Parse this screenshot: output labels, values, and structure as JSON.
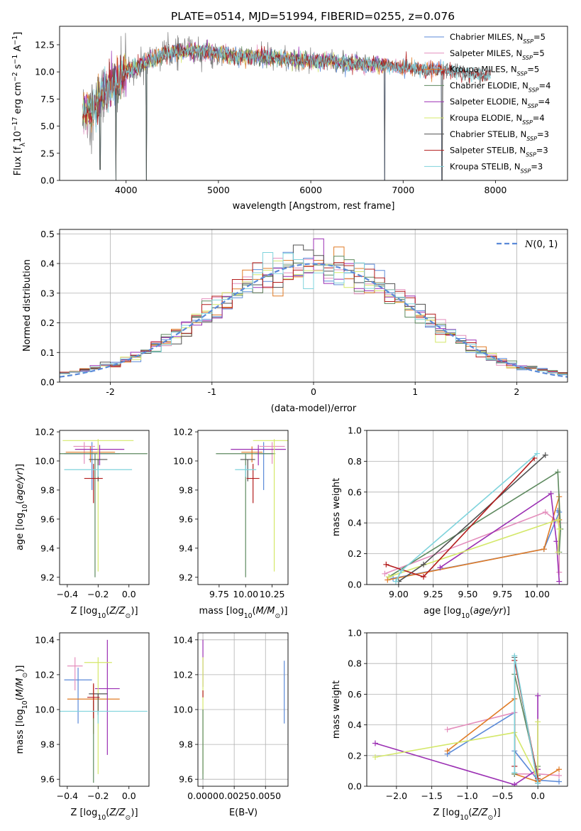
{
  "figure_title": "PLATE=0514, MJD=51994, FIBERID=0255, z=0.076",
  "colors": {
    "Chabrier MILES": "#5b8ad8",
    "Salpeter MILES": "#e48fbd",
    "Kroupa MILES": "#e07b26",
    "Chabrier ELODIE": "#5e8a5f",
    "Salpeter ELODIE": "#9b2fb3",
    "Kroupa ELODIE": "#d4e86a",
    "Chabrier STELIB": "#505050",
    "Salpeter STELIB": "#b31c1c",
    "Kroupa STELIB": "#7fd3dc",
    "data": "#7a7a7a",
    "normal": "#5b8ad8"
  },
  "chart_data": [
    {
      "id": "spectrum",
      "type": "line",
      "title": "PLATE=0514, MJD=51994, FIBERID=0255, z=0.076",
      "xlabel": "wavelength [Angstrom, rest frame]",
      "ylabel": "Flux [f_λ 10^-17 erg cm^-2 s^-1 A^-1]",
      "xlim": [
        3280,
        8780
      ],
      "ylim": [
        0,
        14.2
      ],
      "xticks": [
        4000,
        5000,
        6000,
        7000,
        8000
      ],
      "yticks": [
        0.0,
        2.5,
        5.0,
        7.5,
        10.0,
        12.5
      ],
      "grid": false,
      "legend_position": "top-right",
      "legend": [
        {
          "label": "Chabrier MILES, N",
          "sub": "SSP",
          "tail": "=5",
          "model": "Chabrier MILES"
        },
        {
          "label": "Salpeter MILES, N",
          "sub": "SSP",
          "tail": "=5",
          "model": "Salpeter MILES"
        },
        {
          "label": "Kroupa MILES, N",
          "sub": "SSP",
          "tail": "=5",
          "model": "Kroupa MILES"
        },
        {
          "label": "Chabrier ELODIE, N",
          "sub": "SSP",
          "tail": "=4",
          "model": "Chabrier ELODIE"
        },
        {
          "label": "Salpeter ELODIE, N",
          "sub": "SSP",
          "tail": "=4",
          "model": "Salpeter ELODIE"
        },
        {
          "label": "Kroupa ELODIE, N",
          "sub": "SSP",
          "tail": "=4",
          "model": "Kroupa ELODIE"
        },
        {
          "label": "Chabrier STELIB, N",
          "sub": "SSP",
          "tail": "=3",
          "model": "Chabrier STELIB"
        },
        {
          "label": "Salpeter STELIB, N",
          "sub": "SSP",
          "tail": "=3",
          "model": "Salpeter STELIB"
        },
        {
          "label": "Kroupa STELIB, N",
          "sub": "SSP",
          "tail": "=3",
          "model": "Kroupa STELIB"
        }
      ],
      "continuum": [
        [
          3530,
          6.2
        ],
        [
          3650,
          6.6
        ],
        [
          3750,
          8.0
        ],
        [
          3850,
          8.8
        ],
        [
          3950,
          9.2
        ],
        [
          4000,
          10.0
        ],
        [
          4200,
          10.8
        ],
        [
          4400,
          11.6
        ],
        [
          4600,
          11.9
        ],
        [
          4800,
          11.9
        ],
        [
          5000,
          11.7
        ],
        [
          5200,
          11.4
        ],
        [
          5400,
          11.5
        ],
        [
          5600,
          11.3
        ],
        [
          5800,
          11.1
        ],
        [
          6000,
          11.0
        ],
        [
          6200,
          11.0
        ],
        [
          6400,
          10.8
        ],
        [
          6600,
          10.7
        ],
        [
          6800,
          10.6
        ],
        [
          7000,
          10.4
        ],
        [
          7200,
          10.3
        ],
        [
          7400,
          10.2
        ],
        [
          7600,
          10.0
        ],
        [
          7800,
          9.8
        ],
        [
          7950,
          9.7
        ]
      ],
      "model_ranges": {
        "MILES": [
          3530,
          7420
        ],
        "ELODIE": [
          3530,
          6790
        ],
        "STELIB": [
          3530,
          7950
        ]
      },
      "absorption_dips": [
        [
          3720,
          1.0
        ],
        [
          3890,
          0.0
        ],
        [
          4220,
          0.0
        ],
        [
          6800,
          0.0
        ],
        [
          7420,
          0.0
        ]
      ]
    },
    {
      "id": "residual_histogram",
      "type": "histogram",
      "xlabel": "(data-model)/error",
      "ylabel": "Normed distribution",
      "xlim": [
        -2.5,
        2.5
      ],
      "ylim": [
        0,
        0.515
      ],
      "xticks": [
        -2,
        -1,
        0,
        1,
        2
      ],
      "yticks": [
        0.0,
        0.1,
        0.2,
        0.3,
        0.4,
        0.5
      ],
      "grid": true,
      "legend_position": "top-right",
      "legend": [
        {
          "label": "N(0,1)",
          "style": "dashed"
        }
      ],
      "bin_width": 0.1
    },
    {
      "id": "age_vs_Z",
      "type": "errorbar",
      "xlabel": "Z [log10(Z/Z☉)]",
      "ylabel": "age [log10(age/yr)]",
      "xlim": [
        -0.45,
        0.13
      ],
      "ylim": [
        9.15,
        10.21
      ],
      "xticks": [
        -0.4,
        -0.2,
        0.0
      ],
      "yticks": [
        9.2,
        9.4,
        9.6,
        9.8,
        10.0,
        10.2
      ],
      "grid": false,
      "points": [
        {
          "model": "Chabrier MILES",
          "x": -0.24,
          "xerr": 0.18,
          "y": 10.05,
          "yerr": [
            0.25,
            0.08
          ]
        },
        {
          "model": "Salpeter MILES",
          "x": -0.29,
          "xerr": 0.07,
          "y": 10.1,
          "yerr": [
            0.12,
            0.03
          ]
        },
        {
          "model": "Kroupa MILES",
          "x": -0.25,
          "xerr": 0.16,
          "y": 10.06,
          "yerr": [
            0.07,
            0.04
          ]
        },
        {
          "model": "Chabrier ELODIE",
          "x": -0.22,
          "xerr": 0.34,
          "y": 10.05,
          "yerr": [
            0.85,
            0.0
          ]
        },
        {
          "model": "Salpeter ELODIE",
          "x": -0.19,
          "xerr": 0.16,
          "y": 10.08,
          "yerr": [
            0.11,
            0.03
          ]
        },
        {
          "model": "Kroupa ELODIE",
          "x": -0.2,
          "xerr": 0.23,
          "y": 10.14,
          "yerr": [
            0.9,
            0.01
          ]
        },
        {
          "model": "Chabrier STELIB",
          "x": -0.2,
          "xerr": 0.06,
          "y": 10.01,
          "yerr": [
            0.15,
            0.0
          ]
        },
        {
          "model": "Salpeter STELIB",
          "x": -0.23,
          "xerr": 0.06,
          "y": 9.88,
          "yerr": [
            0.17,
            0.1
          ]
        },
        {
          "model": "Kroupa STELIB",
          "x": -0.2,
          "xerr": 0.22,
          "y": 9.94,
          "yerr": [
            0.05,
            0.03
          ]
        }
      ]
    },
    {
      "id": "age_vs_mass",
      "type": "errorbar",
      "xlabel": "mass [log10(M/M☉)]",
      "ylabel": "",
      "xlim": [
        9.55,
        10.4
      ],
      "ylim": [
        9.15,
        10.21
      ],
      "xticks": [
        9.75,
        10.0,
        10.25
      ],
      "yticks": [
        9.2,
        9.4,
        9.6,
        9.8,
        10.0,
        10.2
      ],
      "grid": false,
      "points": [
        {
          "model": "Chabrier MILES",
          "x": 10.17,
          "xerr": 0.08,
          "y": 10.05,
          "yerr": [
            0.25,
            0.08
          ]
        },
        {
          "model": "Salpeter MILES",
          "x": 10.25,
          "xerr": 0.12,
          "y": 10.1,
          "yerr": [
            0.12,
            0.03
          ]
        },
        {
          "model": "Kroupa MILES",
          "x": 10.06,
          "xerr": 0.1,
          "y": 10.06,
          "yerr": [
            0.07,
            0.04
          ]
        },
        {
          "model": "Chabrier ELODIE",
          "x": 10.0,
          "xerr": 0.28,
          "y": 10.05,
          "yerr": [
            0.85,
            0.0
          ]
        },
        {
          "model": "Salpeter ELODIE",
          "x": 10.12,
          "xerr": 0.26,
          "y": 10.08,
          "yerr": [
            0.11,
            0.03
          ]
        },
        {
          "model": "Kroupa ELODIE",
          "x": 10.27,
          "xerr": 0.2,
          "y": 10.14,
          "yerr": [
            0.9,
            0.01
          ]
        },
        {
          "model": "Chabrier STELIB",
          "x": 10.02,
          "xerr": 0.07,
          "y": 10.01,
          "yerr": [
            0.15,
            0.0
          ]
        },
        {
          "model": "Salpeter STELIB",
          "x": 10.07,
          "xerr": 0.06,
          "y": 9.88,
          "yerr": [
            0.17,
            0.1
          ]
        },
        {
          "model": "Kroupa STELIB",
          "x": 10.0,
          "xerr": 0.1,
          "y": 9.94,
          "yerr": [
            0.05,
            0.03
          ]
        }
      ]
    },
    {
      "id": "mass_weight_vs_age",
      "type": "line",
      "xlabel": "age [log10(age/yr)]",
      "ylabel": "mass weight",
      "xlim": [
        8.77,
        10.22
      ],
      "ylim": [
        0,
        1
      ],
      "xticks": [
        9.0,
        9.25,
        9.5,
        9.75,
        10.0
      ],
      "yticks": [
        0.0,
        0.2,
        0.4,
        0.6,
        0.8,
        1.0
      ],
      "grid": true,
      "series": [
        {
          "model": "Chabrier MILES",
          "x": [
            8.96,
            10.05,
            10.16,
            10.15
          ],
          "y": [
            0.04,
            0.23,
            0.47,
            0.48
          ]
        },
        {
          "model": "Salpeter MILES",
          "x": [
            8.9,
            10.06,
            10.16,
            10.16
          ],
          "y": [
            0.07,
            0.47,
            0.4,
            0.08
          ]
        },
        {
          "model": "Kroupa MILES",
          "x": [
            8.92,
            10.05,
            10.16,
            10.16
          ],
          "y": [
            0.03,
            0.23,
            0.57,
            0.42
          ]
        },
        {
          "model": "Chabrier ELODIE",
          "x": [
            8.93,
            10.15,
            10.17,
            10.16
          ],
          "y": [
            0.05,
            0.73,
            0.36,
            0.21
          ]
        },
        {
          "model": "Salpeter ELODIE",
          "x": [
            9.3,
            10.1,
            10.14,
            10.16
          ],
          "y": [
            0.11,
            0.59,
            0.28,
            0.02
          ]
        },
        {
          "model": "Kroupa ELODIE",
          "x": [
            8.93,
            10.15,
            10.16,
            10.15
          ],
          "y": [
            0.05,
            0.42,
            0.36,
            0.21
          ]
        },
        {
          "model": "Chabrier STELIB",
          "x": [
            9.0,
            9.18,
            10.06
          ],
          "y": [
            0.02,
            0.13,
            0.84
          ]
        },
        {
          "model": "Salpeter STELIB",
          "x": [
            8.91,
            9.18,
            9.98
          ],
          "y": [
            0.13,
            0.05,
            0.82
          ]
        },
        {
          "model": "Kroupa STELIB",
          "x": [
            8.98,
            9.02,
            10.0
          ],
          "y": [
            0.02,
            0.09,
            0.85
          ]
        }
      ]
    },
    {
      "id": "mass_vs_Z",
      "type": "errorbar",
      "xlabel": "Z [log10(Z/Z☉)]",
      "ylabel": "mass [log10(M/M☉)]",
      "xlim": [
        -0.45,
        0.13
      ],
      "ylim": [
        9.56,
        10.44
      ],
      "xticks": [
        -0.4,
        -0.2,
        0.0
      ],
      "yticks": [
        9.6,
        9.8,
        10.0,
        10.2,
        10.4
      ],
      "grid": false,
      "points": [
        {
          "model": "Chabrier MILES",
          "x": -0.33,
          "xerr": 0.09,
          "y": 10.17,
          "yerr": [
            0.25,
            0.07
          ]
        },
        {
          "model": "Salpeter MILES",
          "x": -0.35,
          "xerr": 0.05,
          "y": 10.25,
          "yerr": [
            0.14,
            0.05
          ]
        },
        {
          "model": "Kroupa MILES",
          "x": -0.23,
          "xerr": 0.17,
          "y": 10.06,
          "yerr": [
            0.2,
            0.08
          ]
        },
        {
          "model": "Chabrier ELODIE",
          "x": -0.23,
          "xerr": 0.0,
          "y": 10.0,
          "yerr": [
            0.42,
            0.05
          ]
        },
        {
          "model": "Salpeter ELODIE",
          "x": -0.14,
          "xerr": 0.08,
          "y": 10.12,
          "yerr": [
            0.38,
            0.28
          ]
        },
        {
          "model": "Kroupa ELODIE",
          "x": -0.2,
          "xerr": 0.09,
          "y": 10.27,
          "yerr": [
            0.64,
            0.03
          ]
        },
        {
          "model": "Chabrier STELIB",
          "x": -0.2,
          "xerr": 0.06,
          "y": 10.09,
          "yerr": [
            0.12,
            0.0
          ]
        },
        {
          "model": "Salpeter STELIB",
          "x": -0.23,
          "xerr": 0.04,
          "y": 10.07,
          "yerr": [
            0.12,
            0.08
          ]
        },
        {
          "model": "Kroupa STELIB",
          "x": -0.2,
          "xerr": 0.32,
          "y": 9.99,
          "yerr": [
            0.07,
            0.0
          ]
        }
      ]
    },
    {
      "id": "mass_vs_EBV",
      "type": "errorbar",
      "xlabel": "E(B-V)",
      "ylabel": "",
      "xlim": [
        -0.0004,
        0.0068
      ],
      "ylim": [
        9.56,
        10.44
      ],
      "xticks": [
        0.0,
        0.0025,
        0.005
      ],
      "xtick_labels": [
        "0.0000",
        "0.0025",
        "0.0050"
      ],
      "yticks": [
        9.6,
        9.8,
        10.0,
        10.2,
        10.4
      ],
      "grid": true,
      "points": [
        {
          "model": "Chabrier MILES",
          "x": 0.0065,
          "y": 10.1,
          "yerr": [
            0.18,
            0.18
          ]
        },
        {
          "model": "Salpeter ELODIE",
          "x": 0.0,
          "y": 10.25,
          "yerr": [
            0.12,
            0.15
          ]
        },
        {
          "model": "Kroupa ELODIE",
          "x": 0.0,
          "y": 10.27,
          "yerr": [
            0.64,
            0.03
          ]
        },
        {
          "model": "Salpeter STELIB",
          "x": 0.0,
          "y": 10.11,
          "yerr": [
            0.04,
            0.0
          ]
        },
        {
          "model": "Chabrier ELODIE",
          "x": 0.0,
          "y": 9.85,
          "yerr": [
            0.25,
            0.15
          ]
        }
      ]
    },
    {
      "id": "mass_weight_vs_Z",
      "type": "line",
      "xlabel": "Z [log10(Z/Z☉)]",
      "ylabel": "mass weight",
      "xlim": [
        -2.42,
        0.42
      ],
      "ylim": [
        0,
        1
      ],
      "xticks": [
        -2.0,
        -1.5,
        -1.0,
        -0.5,
        0.0
      ],
      "yticks": [
        0.0,
        0.2,
        0.4,
        0.6,
        0.8,
        1.0
      ],
      "grid": true,
      "series": [
        {
          "model": "Chabrier MILES",
          "x": [
            -1.28,
            -0.33,
            -0.33,
            0.0,
            0.3
          ],
          "y": [
            0.21,
            0.48,
            0.23,
            0.04,
            0.03
          ]
        },
        {
          "model": "Salpeter MILES",
          "x": [
            -1.28,
            -0.33,
            -0.33,
            0.0,
            0.3
          ],
          "y": [
            0.37,
            0.48,
            0.08,
            0.08,
            0.07
          ]
        },
        {
          "model": "Kroupa MILES",
          "x": [
            -1.28,
            -0.33,
            -0.33,
            0.0,
            0.3
          ],
          "y": [
            0.23,
            0.57,
            0.08,
            0.03,
            0.11
          ]
        },
        {
          "model": "Chabrier ELODIE",
          "x": [
            -0.33,
            -0.33,
            0.0,
            0.0
          ],
          "y": [
            0.08,
            0.73,
            0.07,
            0.13
          ]
        },
        {
          "model": "Salpeter ELODIE",
          "x": [
            -2.3,
            -0.33,
            0.0,
            0.0
          ],
          "y": [
            0.28,
            0.01,
            0.11,
            0.59
          ]
        },
        {
          "model": "Kroupa ELODIE",
          "x": [
            -2.3,
            -0.33,
            0.0,
            0.0
          ],
          "y": [
            0.19,
            0.35,
            0.05,
            0.42
          ]
        },
        {
          "model": "Chabrier STELIB",
          "x": [
            -0.33,
            -0.33,
            0.0
          ],
          "y": [
            0.13,
            0.84,
            0.02
          ]
        },
        {
          "model": "Salpeter STELIB",
          "x": [
            -0.33,
            -0.33,
            0.0
          ],
          "y": [
            0.13,
            0.82,
            0.05
          ]
        },
        {
          "model": "Kroupa STELIB",
          "x": [
            -0.33,
            -0.33,
            0.0
          ],
          "y": [
            0.09,
            0.85,
            0.02
          ]
        }
      ]
    }
  ]
}
